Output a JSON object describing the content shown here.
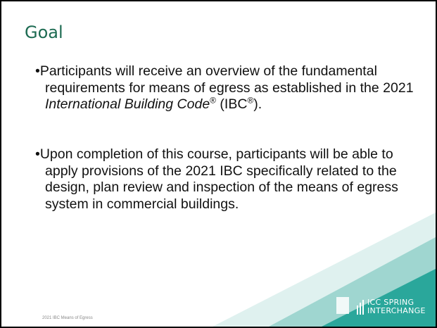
{
  "title": "Goal",
  "bullets": [
    {
      "parts": [
        "•",
        "Participants will receive an overview of the fundamental requirements for means of egress as established in the 2021 ",
        "International Building Code",
        "®",
        " (IBC",
        "®",
        ")."
      ]
    },
    {
      "parts": [
        "•",
        "Upon completion of this course, participants will be able to apply provisions of the 2021 IBC specifically related to the design, plan review and inspection of the means of egress system in commercial buildings."
      ]
    }
  ],
  "footer": "2021 IBC Means of Egress",
  "logo": {
    "line1": "ICC SPRING",
    "line2": "INTERCHANGE"
  }
}
